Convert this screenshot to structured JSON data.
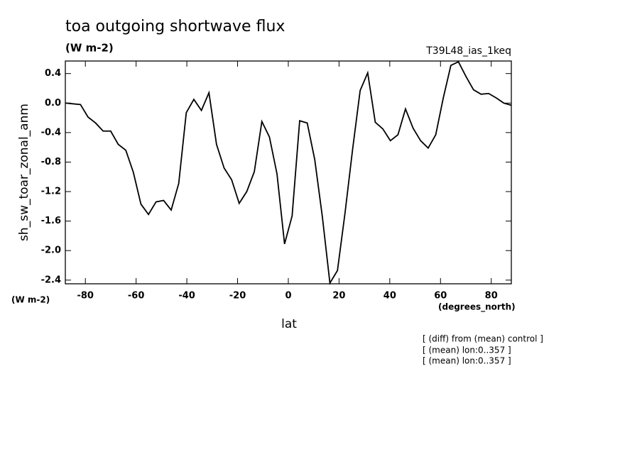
{
  "chart_data": {
    "type": "line",
    "title": "toa outgoing shortwave flux",
    "subtitle": "(W m-2)",
    "run_label": "T39L48_ias_1keq",
    "y_label": "sh_sw_toar_zonal_anm",
    "y_units": "(W m-2)",
    "x_label": "lat",
    "x_units": "(degrees_north)",
    "notes": [
      "[ (diff) from (mean) control ]",
      "[ (mean) lon:0..357 ]",
      "[ (mean) lon:0..357 ]"
    ],
    "x": [
      -87.9,
      -84.92,
      -81.94,
      -78.96,
      -75.98,
      -73.0,
      -70.02,
      -67.04,
      -64.06,
      -61.08,
      -58.1,
      -55.12,
      -52.14,
      -49.16,
      -46.18,
      -43.2,
      -40.22,
      -37.24,
      -34.26,
      -31.28,
      -28.3,
      -25.32,
      -22.34,
      -19.36,
      -16.38,
      -13.4,
      -10.42,
      -7.44,
      -4.46,
      -1.48,
      1.5,
      4.48,
      7.46,
      10.44,
      13.42,
      16.4,
      19.38,
      22.36,
      25.34,
      28.32,
      31.3,
      34.28,
      37.26,
      40.24,
      43.22,
      46.2,
      49.18,
      52.16,
      55.14,
      58.12,
      61.1,
      64.08,
      67.06,
      70.04,
      73.02,
      76.0,
      78.98,
      81.96,
      84.94,
      87.92
    ],
    "series": [
      {
        "color": "#000000",
        "values": [
          0.0,
          -0.01,
          -0.02,
          -0.19,
          -0.27,
          -0.38,
          -0.38,
          -0.56,
          -0.64,
          -0.94,
          -1.37,
          -1.51,
          -1.34,
          -1.32,
          -1.45,
          -1.09,
          -0.13,
          0.05,
          -0.1,
          0.14,
          -0.56,
          -0.88,
          -1.04,
          -1.36,
          -1.2,
          -0.93,
          -0.25,
          -0.46,
          -0.96,
          -1.91,
          -1.53,
          -0.24,
          -0.27,
          -0.77,
          -1.54,
          -2.44,
          -2.27,
          -1.49,
          -0.63,
          0.17,
          0.41,
          -0.26,
          -0.35,
          -0.51,
          -0.43,
          -0.08,
          -0.34,
          -0.51,
          -0.61,
          -0.43,
          0.07,
          0.51,
          0.56,
          0.36,
          0.18,
          0.12,
          0.13,
          0.07,
          0.0,
          -0.03
        ]
      }
    ],
    "xlim": [
      -87.9,
      87.92
    ],
    "ylim": [
      -2.45,
      0.57
    ],
    "xticks": [
      -80,
      -60,
      -40,
      -20,
      {
        "value": 0,
        "label": "0"
      },
      20,
      40,
      60,
      80
    ],
    "yticks": [
      0.4,
      {
        "value": 0,
        "label": "0.0"
      },
      -0.4,
      -0.8,
      -1.2,
      -1.6,
      {
        "value": -2,
        "label": "-2.0"
      },
      -2.4
    ]
  }
}
